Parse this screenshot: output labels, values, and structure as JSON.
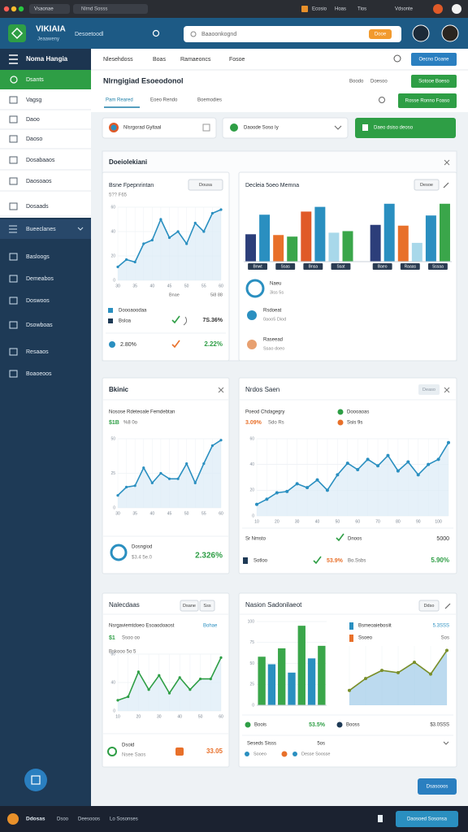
{
  "browser": {
    "tab": "Vsaonae",
    "address": "Nlrnd Sosss",
    "links": [
      "Ecosio",
      "Hoas",
      "Tios",
      "Vdsonte"
    ]
  },
  "header": {
    "logo": "VIKIAIA",
    "logo_sub": "Jeaaweny",
    "nav": "Desoetoodl",
    "search": "Baaoonkognd",
    "badge": "Dooe"
  },
  "sidebar": {
    "title": "Noma Hangia",
    "active": "Dsants",
    "items": [
      "Vagsg",
      "Daoo",
      "Daoso",
      "Dosabaaos",
      "Daosoaos",
      "Dosaads"
    ],
    "section": "Bueeclanes",
    "items2": [
      "Basloogs",
      "Demeabos",
      "Doswoos",
      "Dsowboas",
      "Resaaos",
      "Boaoeoos"
    ]
  },
  "topnav": {
    "tabs": [
      "Nlesehdoss",
      "Boas",
      "Ramaeoncs",
      "Fosoe"
    ],
    "button": "Oecno Doane"
  },
  "page": {
    "title": "Nlrngigiad Esoeodonol",
    "meta": [
      "Boodo",
      "Doesoo"
    ],
    "button": "Sotooe Boeso",
    "tabs": [
      "Pam Reared",
      "Eoeo Rendo",
      "Boemodies"
    ],
    "button2": "Rosse Ronno Foaso"
  },
  "filters": [
    "Nlsrgorad Gyltaal",
    "Daoode Soso Iy",
    "Daeo dsiso deoso"
  ],
  "sections": [
    {
      "title": "Doeiolekiani",
      "cards": [
        {
          "title": "Bsne Fpepnrintan",
          "subtitle": "5?? F65",
          "dropdown": "Dousa",
          "chart": {
            "type": "line",
            "color": "#2a8fc0",
            "values": [
              11,
              17,
              15,
              30,
              33,
              50,
              35,
              40,
              30,
              47,
              40,
              55,
              58
            ],
            "ylim": [
              0,
              60
            ],
            "yticks": [
              0,
              20,
              40,
              60
            ],
            "categories": [
              "30",
              null,
              "35",
              null,
              "40",
              null,
              "45",
              null,
              "50",
              null,
              "55",
              null,
              "60"
            ]
          },
          "caption": "Bnae",
          "caption2": "5i8 88",
          "legend": [
            "Doooaoodaa",
            "Bsloa"
          ],
          "stat": "7S.36%",
          "stat2_label": "2.80%",
          "stat2": "2.22%"
        },
        {
          "title": "Decleia 5oeo Memna",
          "button": "Desoe",
          "chart": {
            "type": "bar",
            "values": [
              35,
              60,
              34,
              32,
              64,
              70,
              37,
              39,
              47,
              74,
              46,
              24,
              59,
              74
            ],
            "colors": [
              "#2c3e7a",
              "#2a8fc0",
              "#e8702a",
              "#3aa64a",
              "#e05a28",
              "#2a8fc0",
              "#a8d8ea",
              "#3aa64a",
              "#2c3e7a",
              "#2a8fc0",
              "#e8702a",
              "#a8d8ea",
              "#2a8fc0",
              "#3aa64a"
            ],
            "ylim": [
              0,
              80
            ],
            "categories": [
              "Bnwt",
              null,
              "Ssas",
              null,
              "Bnsa",
              null,
              "Ssat",
              null,
              "Baeo",
              null,
              "Raaas",
              null,
              "Sssaa",
              null
            ]
          },
          "legend": [
            {
              "title": "Naeu",
              "sub": "3iss 5s"
            },
            {
              "title": "Rsdoeat",
              "sub": "0aoo5 Diod"
            },
            {
              "title": "Raseead",
              "sub": "Ssao doeo"
            }
          ]
        }
      ]
    },
    {
      "cards": [
        {
          "title": "Bkinic",
          "subtitle": "Nosose Rdeteoale Femdebtan",
          "stat_line": [
            "$1B",
            "%8 0o"
          ],
          "chart": {
            "type": "line",
            "color": "#2a8fc0",
            "values": [
              9,
              15,
              16,
              29,
              18,
              25,
              21,
              21,
              32,
              18,
              32,
              45,
              49
            ],
            "ylim": [
              0,
              50
            ],
            "yticks": [
              0,
              25,
              50
            ],
            "categories": [
              "30",
              null,
              "35",
              null,
              "40",
              null,
              "45",
              null,
              "50",
              null,
              "55",
              null,
              "60"
            ]
          },
          "footer": {
            "title": "Dosngiod",
            "sub": "$3.4 5e.0",
            "value": "2.326%"
          }
        },
        {
          "title": "Nrdos Saen",
          "badge": "Deaso",
          "subtitle": "Poeod Chdagegry",
          "stat_line": [
            "3.09%",
            "Sdo Rs"
          ],
          "legend": [
            "Doooaoas",
            "Ssis 9s"
          ],
          "chart": {
            "type": "line",
            "color": "#2a8fc0",
            "values": [
              9,
              13,
              18,
              19,
              25,
              22,
              28,
              20,
              32,
              41,
              36,
              44,
              39,
              47,
              35,
              42,
              32,
              40,
              44,
              57
            ],
            "ylim": [
              0,
              60
            ],
            "yticks": [
              0,
              20,
              40,
              60
            ],
            "categories": [
              "10",
              null,
              "20",
              null,
              "30",
              null,
              "40",
              null,
              "50",
              null,
              "60",
              null,
              "70",
              null,
              "80",
              null,
              "90",
              null,
              "100",
              null
            ]
          },
          "rows": [
            [
              "Sr Nmsto",
              "Dnoos",
              "5000"
            ],
            [
              "Sotloo",
              "53.9%",
              "Bo.Ssbs",
              "5.90%"
            ]
          ]
        }
      ]
    },
    {
      "cards": [
        {
          "title": "Nalecdaas",
          "buttons": [
            "Dsane",
            "Sss"
          ],
          "subtitle": "Nsrgaviemtdoeo Esoaodoaost",
          "highlight": "Bohae",
          "stat_line": [
            "$1",
            "Ssoo oo"
          ],
          "sub2": "Bskooo 5o 5",
          "chart": {
            "type": "line",
            "color": "#2e9e45",
            "values": [
              15,
              20,
              55,
              30,
              50,
              25,
              47,
              30,
              45,
              45,
              75
            ],
            "ylim": [
              0,
              80
            ],
            "yticks": [
              0,
              40,
              80
            ],
            "categories": [
              "10",
              null,
              "20",
              null,
              "30",
              null,
              "40",
              null,
              "50",
              null,
              "60"
            ]
          },
          "footer": {
            "title": "Dsoid",
            "sub": "Nsee Saos",
            "value": "33.05"
          }
        },
        {
          "title": "Nasion Sadonilaeot",
          "button": "Ddso",
          "chart": {
            "type": "bar",
            "values": [
              58,
              49,
              68,
              39,
              95,
              56,
              71
            ],
            "colors": [
              "#3aa64a",
              "#2a8fc0",
              "#3aa64a",
              "#2a8fc0",
              "#3aa64a",
              "#2a8fc0",
              "#3aa64a"
            ],
            "ylim": [
              0,
              100
            ],
            "yticks": [
              0,
              25,
              50,
              75,
              100
            ]
          },
          "chart2": {
            "type": "line",
            "color": "#7a8f2a",
            "area_color": "#9fcbe8",
            "values": [
              20,
              36,
              47,
              44,
              58,
              42,
              74
            ],
            "ylim": [
              0,
              80
            ]
          },
          "legend": [
            [
              "Bsmeoaiebosiit",
              "5.3SSS"
            ],
            [
              "Ssoeo",
              "Sos"
            ]
          ],
          "rows": [
            [
              "Boois",
              "53.5%"
            ],
            [
              "Booss",
              "$3.0SSS"
            ]
          ],
          "footer": [
            "Seseds Sisss",
            "5os"
          ],
          "footer2": [
            "Sooeo",
            "Desse Soosse"
          ]
        }
      ]
    }
  ],
  "bottom_button": "Dsasooos",
  "footer": {
    "logo": "Ddosas",
    "links": [
      "Dsoo",
      "Deesooos",
      "Lo Sosonses"
    ],
    "button": "Daosoed Sosonsa"
  }
}
